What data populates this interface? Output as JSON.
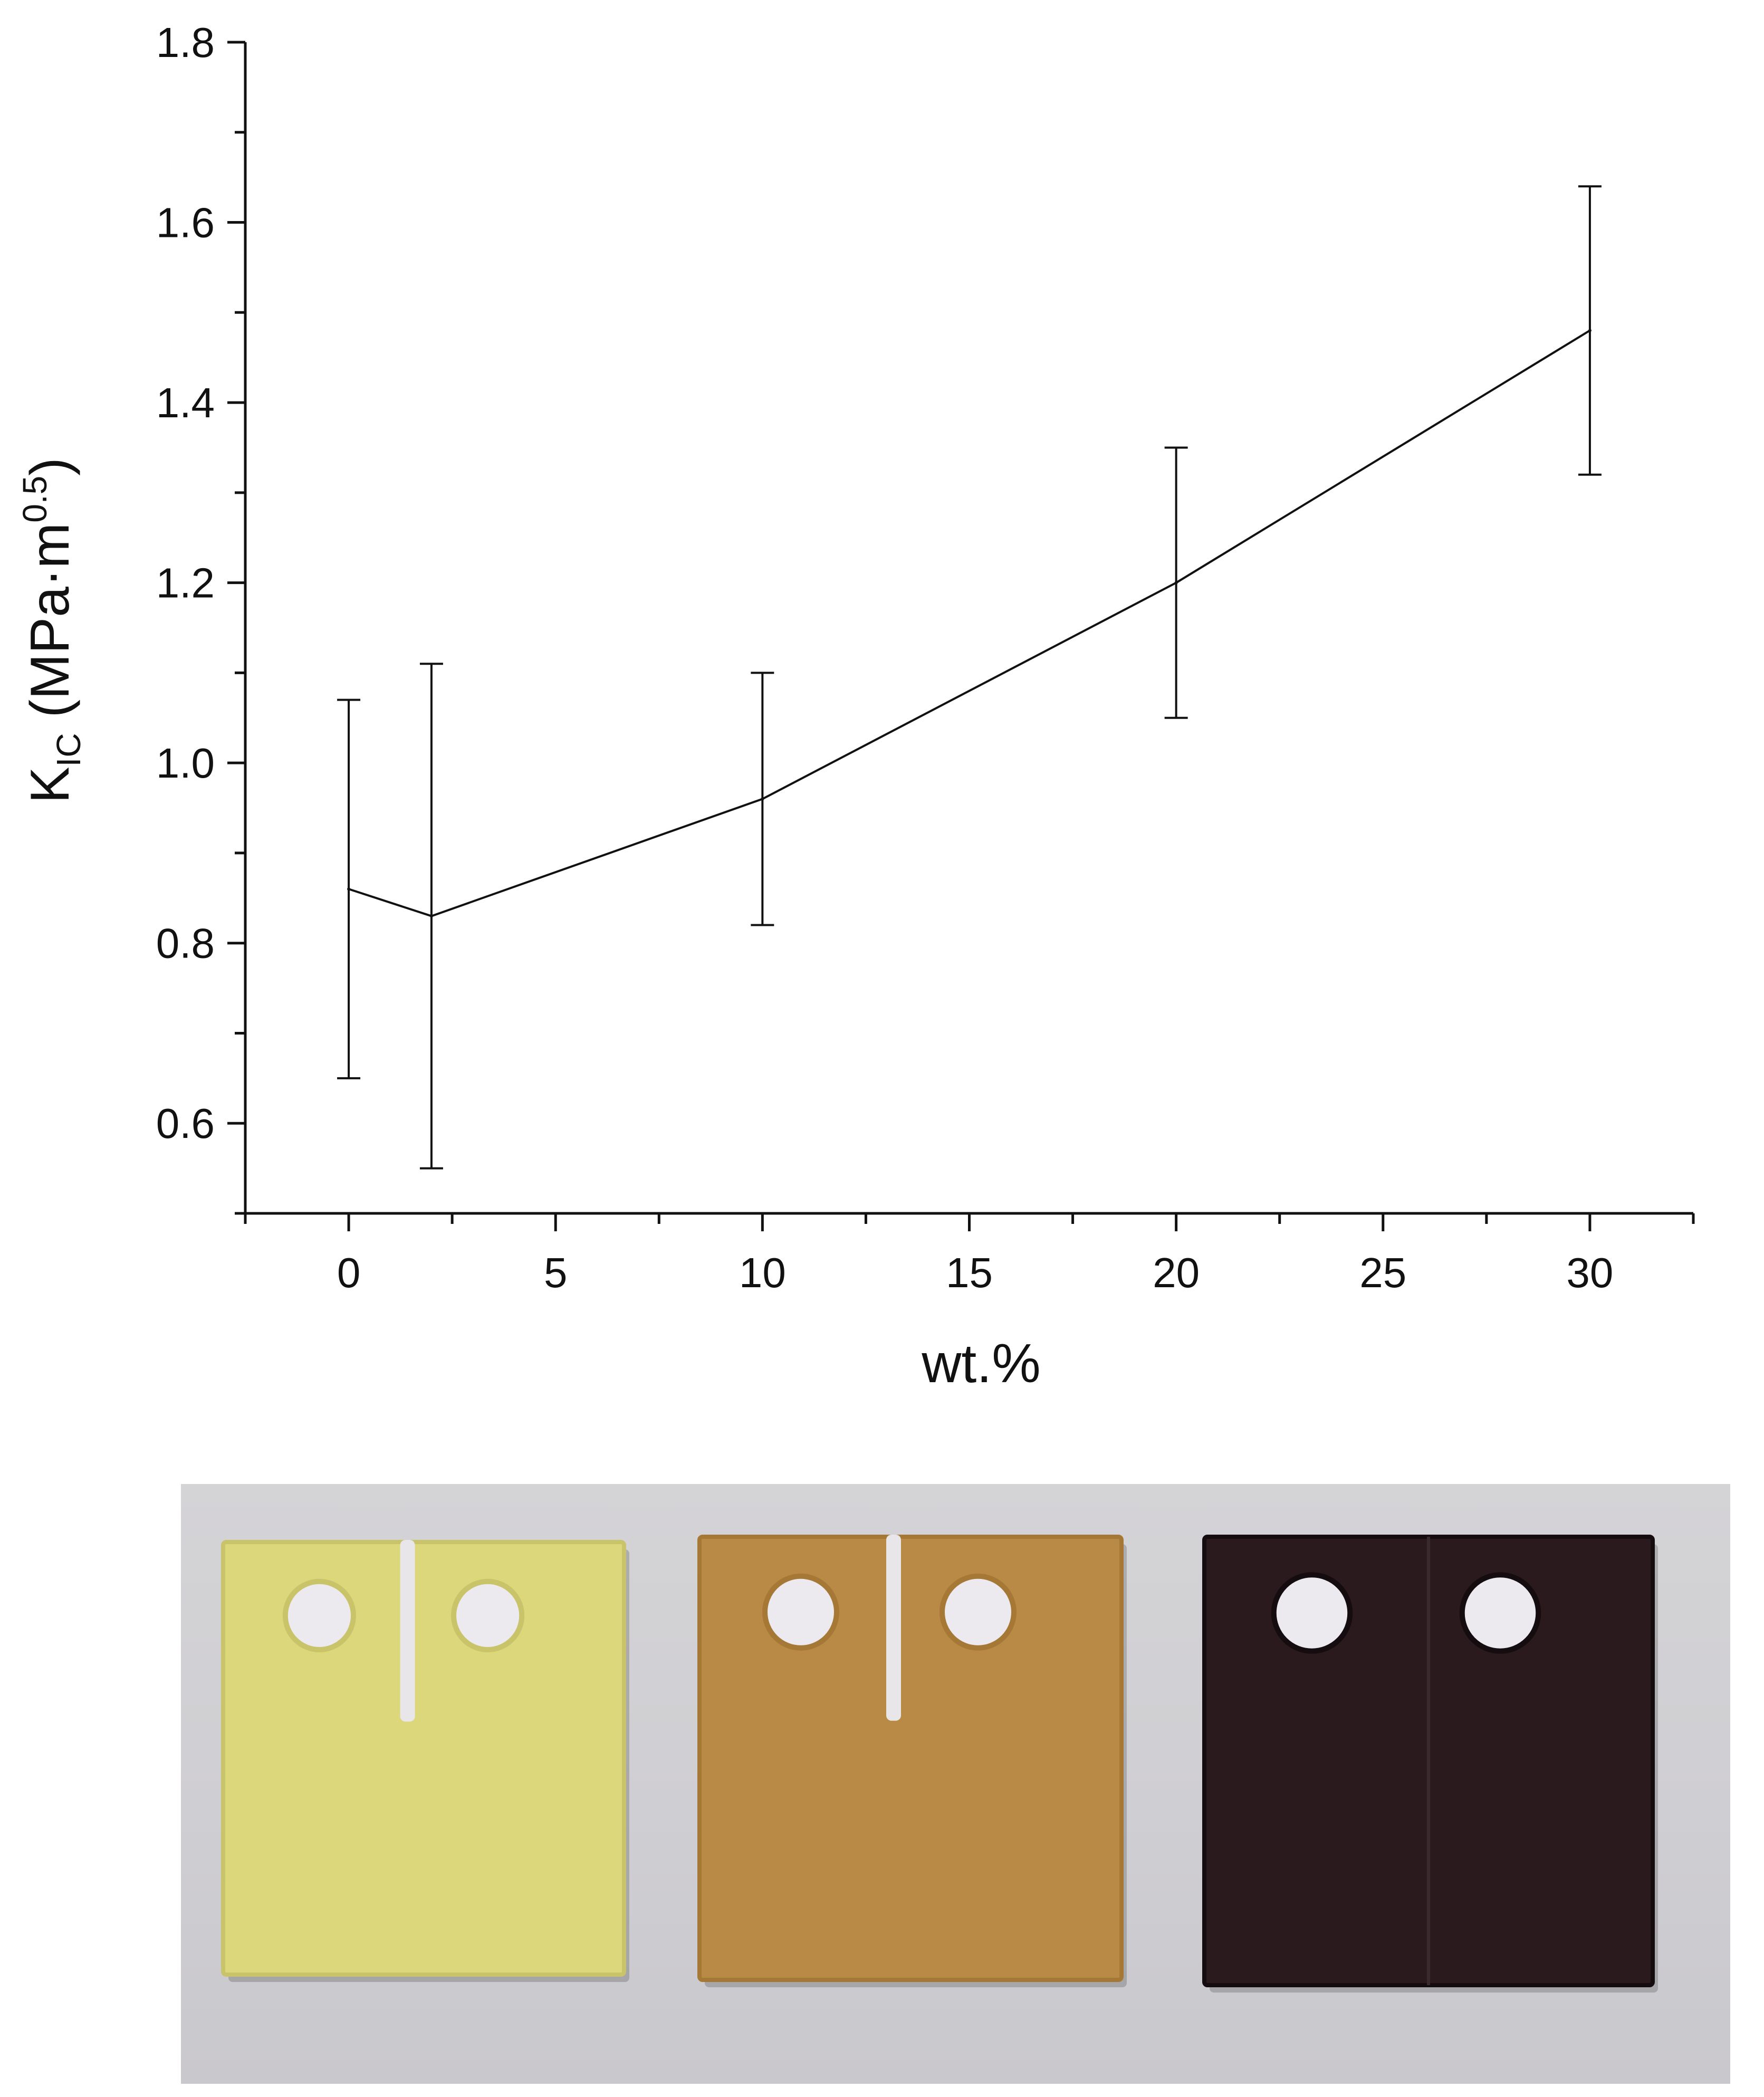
{
  "chart_data": {
    "type": "line",
    "title": "",
    "xlabel": "wt.%",
    "ylabel": {
      "main": "K",
      "subscript": "IC",
      "unit_open": " (MPa·m",
      "unit_superscript": "0.5",
      "unit_close": ")"
    },
    "xlim": [
      -2.5,
      32.5
    ],
    "ylim": [
      0.5,
      1.8
    ],
    "x_ticks": [
      0,
      5,
      10,
      15,
      20,
      25,
      30
    ],
    "x_tick_labels": [
      "0",
      "5",
      "10",
      "15",
      "20",
      "25",
      "30"
    ],
    "y_ticks": [
      0.6,
      0.8,
      1.0,
      1.2,
      1.4,
      1.6,
      1.8
    ],
    "y_tick_labels": [
      "0.6",
      "0.8",
      "1.0",
      "1.2",
      "1.4",
      "1.6",
      "1.8"
    ],
    "grid": false,
    "series": [
      {
        "color": "#111111",
        "points": [
          {
            "x": 0,
            "y": 0.86,
            "err_low": 0.65,
            "err_high": 1.07
          },
          {
            "x": 2,
            "y": 0.83,
            "err_low": 0.55,
            "err_high": 1.11
          },
          {
            "x": 10,
            "y": 0.96,
            "err_low": 0.82,
            "err_high": 1.1
          },
          {
            "x": 20,
            "y": 1.2,
            "err_low": 1.05,
            "err_high": 1.35
          },
          {
            "x": 30,
            "y": 1.48,
            "err_low": 1.32,
            "err_high": 1.64
          }
        ]
      }
    ]
  },
  "photo": {
    "background_color": "#d0cfd3",
    "specimens": [
      {
        "color": "#dcd77a",
        "edge_color": "#c9c36a",
        "notched": true
      },
      {
        "color": "#b98a45",
        "edge_color": "#a67836",
        "notched": true
      },
      {
        "color": "#2a1a1e",
        "edge_color": "#140c0f",
        "notched": false
      }
    ]
  }
}
